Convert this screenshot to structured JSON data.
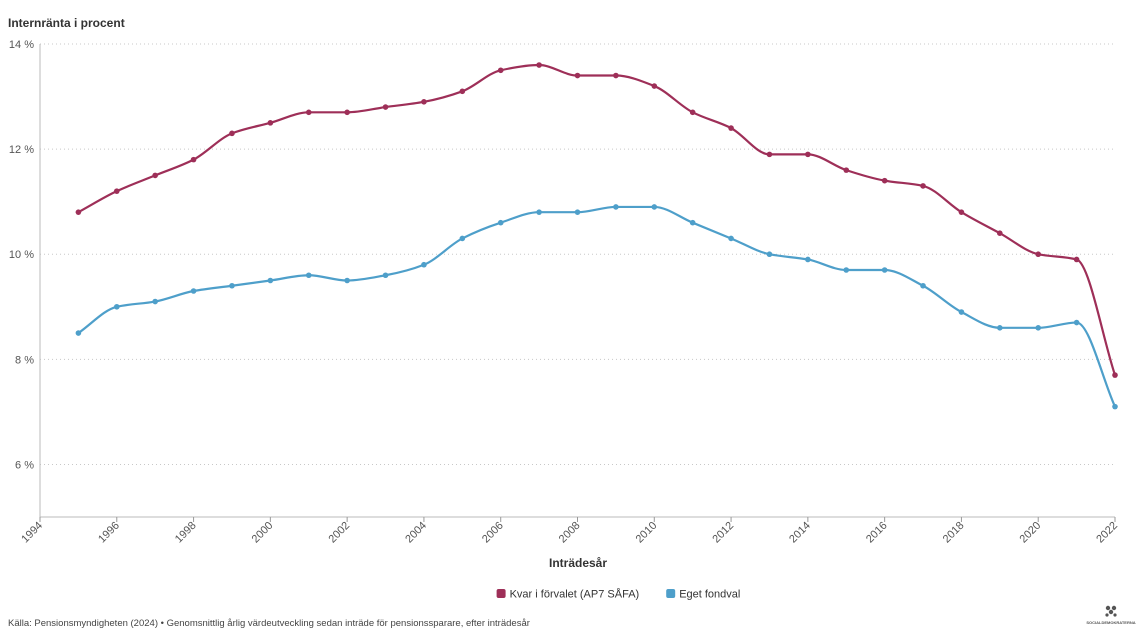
{
  "chart_data": {
    "type": "line",
    "title": "",
    "ylabel": "Internränta i procent",
    "xlabel": "Inträdesår",
    "ylim": [
      5,
      14
    ],
    "xlim": [
      1994,
      2022
    ],
    "yticks": [
      6,
      8,
      10,
      12,
      14
    ],
    "ytick_labels": [
      "6 %",
      "8 %",
      "10 %",
      "12 %",
      "14 %"
    ],
    "xticks": [
      "1994",
      "1996",
      "1998",
      "2000",
      "2002",
      "2004",
      "2006",
      "2008",
      "2010",
      "2012",
      "2014",
      "2016",
      "2018",
      "2020",
      "2022"
    ],
    "x": [
      1995,
      1996,
      1997,
      1998,
      1999,
      2000,
      2001,
      2002,
      2003,
      2004,
      2005,
      2006,
      2007,
      2008,
      2009,
      2010,
      2011,
      2012,
      2013,
      2014,
      2015,
      2016,
      2017,
      2018,
      2019,
      2020,
      2021,
      2022
    ],
    "series": [
      {
        "name": "Kvar i förvalet (AP7 SÅFA)",
        "color": "#9e2f58",
        "values": [
          10.8,
          11.2,
          11.5,
          11.8,
          12.3,
          12.5,
          12.7,
          12.7,
          12.8,
          12.9,
          13.1,
          13.5,
          13.6,
          13.4,
          13.4,
          13.2,
          12.7,
          12.4,
          11.9,
          11.9,
          11.6,
          11.4,
          11.3,
          10.8,
          10.4,
          10.0,
          9.9,
          7.7
        ]
      },
      {
        "name": "Eget fondval",
        "color": "#4e9fca",
        "values": [
          8.5,
          9.0,
          9.1,
          9.3,
          9.4,
          9.5,
          9.6,
          9.5,
          9.6,
          9.8,
          10.3,
          10.6,
          10.8,
          10.8,
          10.9,
          10.9,
          10.6,
          10.3,
          10.0,
          9.9,
          9.7,
          9.7,
          9.4,
          8.9,
          8.6,
          8.6,
          8.7,
          7.1
        ]
      }
    ],
    "legend_position": "bottom-center",
    "grid": true,
    "source": "Källa: Pensionsmyndigheten (2024) • Genomsnittlig årlig värdeutveckling sedan inträde för pensionssparare, efter inträdesår"
  },
  "logo": {
    "text": "SOCIALDEMOKRATERNA"
  }
}
